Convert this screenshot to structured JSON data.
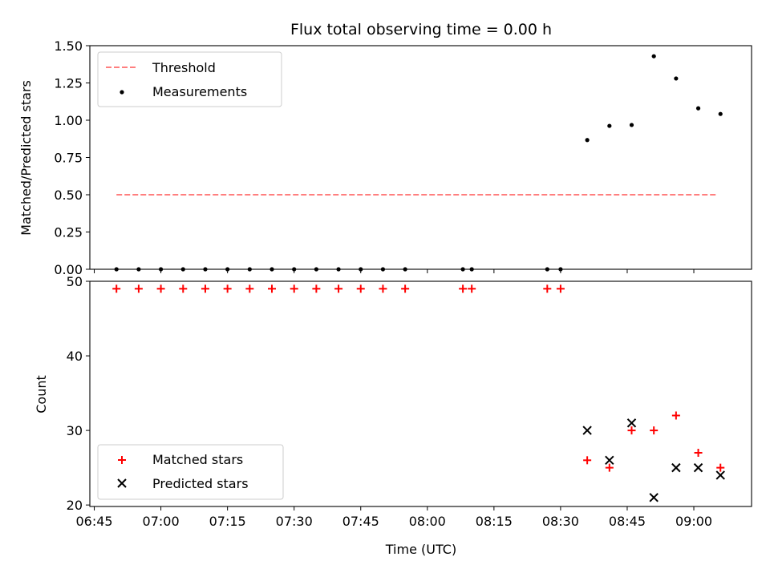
{
  "chart_data": [
    {
      "type": "scatter",
      "title": "Flux total observing time = 0.00 h",
      "xlabel": "",
      "ylabel": "Matched/Predicted stars",
      "ylim": [
        0,
        1.5
      ],
      "yticks": [
        0,
        0.25,
        0.5,
        0.75,
        1.0,
        1.25,
        1.5
      ],
      "ytick_labels": [
        "0.00",
        "0.25",
        "0.50",
        "0.75",
        "1.00",
        "1.25",
        "1.50"
      ],
      "legend_position": "top-left",
      "series": [
        {
          "name": "Threshold",
          "kind": "line",
          "style": "dashed",
          "color": "#ff7f7f",
          "x": [
            "06:50",
            "09:05"
          ],
          "y": [
            0.5,
            0.5
          ]
        },
        {
          "name": "Measurements",
          "kind": "scatter",
          "marker": "dot",
          "color": "#000000",
          "x": [
            "06:50",
            "06:55",
            "07:00",
            "07:05",
            "07:10",
            "07:15",
            "07:20",
            "07:25",
            "07:30",
            "07:35",
            "07:40",
            "07:45",
            "07:50",
            "07:55",
            "08:08",
            "08:10",
            "08:27",
            "08:30",
            "08:36",
            "08:41",
            "08:46",
            "08:51",
            "08:56",
            "09:01",
            "09:06"
          ],
          "y": [
            0,
            0,
            0,
            0,
            0,
            0,
            0,
            0,
            0,
            0,
            0,
            0,
            0,
            0,
            0,
            0,
            0,
            0,
            0.867,
            0.962,
            0.968,
            1.429,
            1.28,
            1.08,
            1.042
          ]
        }
      ]
    },
    {
      "type": "scatter",
      "title": "",
      "xlabel": "Time (UTC)",
      "ylabel": "Count",
      "ylim": [
        19.8,
        50
      ],
      "yticks": [
        20,
        30,
        40,
        50
      ],
      "ytick_labels": [
        "20",
        "30",
        "40",
        "50"
      ],
      "xlim": [
        "06:44",
        "09:13"
      ],
      "xticks": [
        "06:45",
        "07:00",
        "07:15",
        "07:30",
        "07:45",
        "08:00",
        "08:15",
        "08:30",
        "08:45",
        "09:00"
      ],
      "legend_position": "bottom-left",
      "series": [
        {
          "name": "Matched stars",
          "kind": "scatter",
          "marker": "plus",
          "color": "#ff0000",
          "x": [
            "06:50",
            "06:55",
            "07:00",
            "07:05",
            "07:10",
            "07:15",
            "07:20",
            "07:25",
            "07:30",
            "07:35",
            "07:40",
            "07:45",
            "07:50",
            "07:55",
            "08:08",
            "08:10",
            "08:27",
            "08:30",
            "08:36",
            "08:41",
            "08:46",
            "08:51",
            "08:56",
            "09:01",
            "09:06"
          ],
          "y": [
            49,
            49,
            49,
            49,
            49,
            49,
            49,
            49,
            49,
            49,
            49,
            49,
            49,
            49,
            49,
            49,
            49,
            49,
            26,
            25,
            30,
            30,
            32,
            27,
            25
          ]
        },
        {
          "name": "Predicted stars",
          "kind": "scatter",
          "marker": "x",
          "color": "#000000",
          "x": [
            "08:36",
            "08:41",
            "08:46",
            "08:51",
            "08:56",
            "09:01",
            "09:06"
          ],
          "y": [
            30,
            26,
            31,
            21,
            25,
            25,
            24
          ]
        }
      ]
    }
  ]
}
